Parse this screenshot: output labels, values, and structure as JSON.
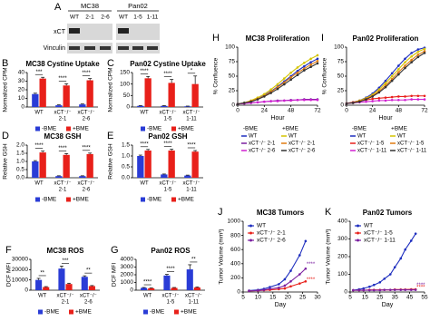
{
  "blot": {
    "label": "A",
    "groups": [
      {
        "name": "MC38",
        "lanes": [
          "WT",
          "2-1",
          "2-6"
        ]
      },
      {
        "name": "Pan02",
        "lanes": [
          "WT",
          "1-5",
          "1-11"
        ]
      }
    ],
    "rows": [
      "xCT",
      "Vinculin"
    ]
  },
  "chart_data": [
    {
      "type": "bar",
      "label": "B",
      "title": "MC38 Cystine Uptake",
      "y_label": "Normalized CPM",
      "categories": [
        [
          "WT"
        ],
        [
          "xCT⁻/⁻",
          "2-1"
        ],
        [
          "xCT⁻/⁻",
          "2-6"
        ]
      ],
      "series": [
        {
          "name": "-BME",
          "color": "#2a3cd6",
          "values": [
            15,
            2,
            3
          ],
          "errors": [
            1,
            0.5,
            0.5
          ]
        },
        {
          "name": "+BME",
          "color": "#e8201a",
          "values": [
            33,
            25,
            31
          ],
          "errors": [
            1.5,
            2,
            2
          ]
        }
      ],
      "ylim": [
        0,
        40
      ],
      "yticks": [
        0,
        10,
        20,
        30,
        40
      ],
      "annotations": [
        "***",
        "****",
        "****"
      ]
    },
    {
      "type": "bar",
      "label": "C",
      "title": "Pan02 Cystine Uptake",
      "y_label": "Normalized CPM",
      "categories": [
        [
          "WT"
        ],
        [
          "xCT⁻/⁻",
          "1-5"
        ],
        [
          "xCT⁻/⁻",
          "1-11"
        ]
      ],
      "series": [
        {
          "name": "-BME",
          "color": "#2a3cd6",
          "values": [
            5,
            5,
            3
          ],
          "errors": [
            1,
            1,
            1
          ]
        },
        {
          "name": "+BME",
          "color": "#e8201a",
          "values": [
            125,
            105,
            100
          ],
          "errors": [
            8,
            15,
            35
          ]
        }
      ],
      "ylim": [
        0,
        150
      ],
      "yticks": [
        0,
        50,
        100,
        150
      ],
      "annotations": [
        "****",
        "****",
        "*"
      ]
    },
    {
      "type": "bar",
      "label": "D",
      "title": "MC38 GSH",
      "y_label": "Relative GSH",
      "categories": [
        [
          "WT"
        ],
        [
          "xCT⁻/⁻",
          "2-1"
        ],
        [
          "xCT⁻/⁻",
          "2-6"
        ]
      ],
      "series": [
        {
          "name": "-BME",
          "color": "#2a3cd6",
          "values": [
            1.0,
            0.1,
            0.1
          ],
          "errors": [
            0.05,
            0.02,
            0.02
          ]
        },
        {
          "name": "+BME",
          "color": "#e8201a",
          "values": [
            1.55,
            1.4,
            1.45
          ],
          "errors": [
            0.08,
            0.08,
            0.06
          ]
        }
      ],
      "ylim": [
        0,
        2.0
      ],
      "yticks": [
        {
          "value": 0,
          "label": "0.0"
        },
        0.5,
        {
          "value": 1,
          "label": "1.0"
        },
        1.5,
        {
          "value": 2,
          "label": "2.0"
        }
      ],
      "annotations": [
        "****",
        "****",
        "****"
      ]
    },
    {
      "type": "bar",
      "label": "E",
      "title": "Pan02 GSH",
      "y_label": "Relative GSH",
      "categories": [
        [
          "WT"
        ],
        [
          "xCT⁻/⁻",
          "1-5"
        ],
        [
          "xCT⁻/⁻",
          "1-11"
        ]
      ],
      "series": [
        {
          "name": "-BME",
          "color": "#2a3cd6",
          "values": [
            1.0,
            0.15,
            0.1
          ],
          "errors": [
            0.04,
            0.02,
            0.02
          ]
        },
        {
          "name": "+BME",
          "color": "#e8201a",
          "values": [
            1.25,
            1.25,
            1.2
          ],
          "errors": [
            0.05,
            0.06,
            0.05
          ]
        }
      ],
      "ylim": [
        0,
        1.5
      ],
      "yticks": [
        {
          "value": 0,
          "label": "0.0"
        },
        0.5,
        {
          "value": 1,
          "label": "1.0"
        },
        1.5
      ],
      "annotations": [
        "****",
        "****",
        "****"
      ]
    },
    {
      "type": "bar",
      "label": "F",
      "title": "MC38 ROS",
      "y_label": "DCF MFI",
      "categories": [
        [
          "WT"
        ],
        [
          "xCT⁻/⁻",
          "2-1"
        ],
        [
          "xCT⁻/⁻",
          "2-6"
        ]
      ],
      "series": [
        {
          "name": "-BME",
          "color": "#2a3cd6",
          "values": [
            10000,
            21000,
            13000
          ],
          "errors": [
            1500,
            2500,
            1000
          ]
        },
        {
          "name": "+BME",
          "color": "#e8201a",
          "values": [
            3000,
            6000,
            4000
          ],
          "errors": [
            500,
            800,
            500
          ]
        }
      ],
      "ylim": [
        0,
        30000
      ],
      "yticks": [
        0,
        10000,
        20000,
        30000
      ],
      "annotations": [
        "**",
        "***",
        "**"
      ]
    },
    {
      "type": "bar",
      "label": "G",
      "title": "Pan02 ROS",
      "y_label": "DCF MFI",
      "categories": [
        [
          "WT"
        ],
        [
          "xCT⁻/⁻",
          "1-5"
        ],
        [
          "xCT⁻/⁻",
          "1-11"
        ]
      ],
      "series": [
        {
          "name": "-BME",
          "color": "#2a3cd6",
          "values": [
            300,
            1900,
            2700
          ],
          "errors": [
            50,
            150,
            600
          ]
        },
        {
          "name": "+BME",
          "color": "#e8201a",
          "values": [
            250,
            300,
            350
          ],
          "errors": [
            40,
            50,
            60
          ]
        }
      ],
      "ylim": [
        0,
        4000
      ],
      "yticks": [
        0,
        1000,
        2000,
        3000,
        4000
      ],
      "annotations": [
        "****",
        "****",
        "**"
      ]
    },
    {
      "type": "line",
      "label": "H",
      "title": "MC38 Proliferation",
      "x_label": "Hour",
      "y_label": "% Confluence",
      "legend": "below",
      "legend_headers": [
        "-BME",
        "+BME"
      ],
      "x": [
        0,
        6,
        12,
        18,
        24,
        30,
        36,
        42,
        48,
        54,
        60,
        66,
        72
      ],
      "xlim": [
        0,
        72
      ],
      "xticks": [
        0,
        24,
        48,
        72
      ],
      "ylim": [
        0,
        100
      ],
      "yticks": [
        0,
        25,
        50,
        75,
        100
      ],
      "series": [
        {
          "name": "WT",
          "color": "#1f2fbf",
          "values": [
            2,
            4,
            7,
            11,
            17,
            24,
            32,
            41,
            50,
            59,
            67,
            74,
            80
          ]
        },
        {
          "name": "WT",
          "color": "#d4c400",
          "values": [
            2,
            4,
            8,
            13,
            19,
            27,
            36,
            46,
            56,
            65,
            73,
            80,
            86
          ]
        },
        {
          "name": "xCT⁻/⁻ 2-1",
          "color": "#7a1fa0",
          "values": [
            2,
            3,
            4,
            5,
            6,
            7,
            8,
            8,
            9,
            9,
            10,
            10,
            10
          ]
        },
        {
          "name": "xCT⁻/⁻ 2-1",
          "color": "#e07a10",
          "values": [
            2,
            4,
            7,
            11,
            16,
            23,
            31,
            39,
            48,
            56,
            63,
            70,
            76
          ]
        },
        {
          "name": "xCT⁻/⁻ 2-6",
          "color": "#d020d0",
          "values": [
            2,
            3,
            4,
            5,
            6,
            7,
            7,
            8,
            8,
            9,
            9,
            9,
            9
          ]
        },
        {
          "name": "xCT⁻/⁻ 2-6",
          "color": "#333333",
          "values": [
            2,
            4,
            6,
            10,
            15,
            21,
            28,
            36,
            44,
            52,
            60,
            66,
            72
          ]
        }
      ]
    },
    {
      "type": "line",
      "label": "I",
      "title": "Pan02 Proliferation",
      "x_label": "Hour",
      "y_label": "% Confluence",
      "legend": "below",
      "legend_headers": [
        "-BME",
        "+BME"
      ],
      "x": [
        0,
        6,
        12,
        18,
        24,
        30,
        36,
        42,
        48,
        54,
        60,
        66,
        72
      ],
      "xlim": [
        0,
        72
      ],
      "xticks": [
        0,
        24,
        48,
        72
      ],
      "ylim": [
        0,
        100
      ],
      "yticks": [
        0,
        25,
        50,
        75,
        100
      ],
      "series": [
        {
          "name": "WT",
          "color": "#1f2fbf",
          "values": [
            3,
            5,
            8,
            13,
            20,
            30,
            42,
            55,
            68,
            80,
            90,
            96,
            99
          ]
        },
        {
          "name": "WT",
          "color": "#d4c400",
          "values": [
            3,
            5,
            8,
            12,
            18,
            27,
            38,
            50,
            62,
            74,
            84,
            92,
            97
          ]
        },
        {
          "name": "xCT⁻/⁻ 1-5",
          "color": "#e8201a",
          "values": [
            3,
            5,
            7,
            9,
            11,
            12,
            13,
            14,
            15,
            15,
            16,
            16,
            16
          ]
        },
        {
          "name": "xCT⁻/⁻ 1-5",
          "color": "#e07a10",
          "values": [
            3,
            4,
            7,
            11,
            16,
            24,
            34,
            45,
            57,
            68,
            78,
            87,
            93
          ]
        },
        {
          "name": "xCT⁻/⁻ 1-11",
          "color": "#d020d0",
          "values": [
            3,
            4,
            5,
            6,
            7,
            8,
            8,
            9,
            9,
            9,
            10,
            10,
            10
          ]
        },
        {
          "name": "xCT⁻/⁻ 1-11",
          "color": "#333333",
          "values": [
            3,
            4,
            6,
            10,
            15,
            22,
            31,
            42,
            53,
            64,
            74,
            83,
            90
          ]
        }
      ]
    },
    {
      "type": "line",
      "label": "J",
      "title": "MC38 Tumors",
      "x_label": "Day",
      "y_label": "Tumor Volume (mm³)",
      "legend": "upper left",
      "x": [
        7,
        10,
        12,
        14,
        17,
        19,
        21,
        24,
        26
      ],
      "xlim": [
        5,
        30
      ],
      "xticks": [
        5,
        10,
        15,
        20,
        25,
        30
      ],
      "ylim": [
        0,
        1000
      ],
      "yticks": [
        0,
        200,
        400,
        600,
        800,
        1000
      ],
      "series": [
        {
          "name": "WT",
          "color": "#1f2fbf",
          "values": [
            20,
            30,
            45,
            70,
            110,
            180,
            300,
            520,
            720
          ]
        },
        {
          "name": "xCT⁻/⁻ 2-1",
          "color": "#e8201a",
          "values": [
            15,
            20,
            25,
            30,
            40,
            50,
            80,
            120,
            150
          ]
        },
        {
          "name": "xCT⁻/⁻ 2-6",
          "color": "#7a1fa0",
          "values": [
            15,
            22,
            30,
            45,
            60,
            90,
            150,
            250,
            330
          ]
        }
      ],
      "annotations": [
        "****",
        "****"
      ]
    },
    {
      "type": "line",
      "label": "K",
      "title": "Pan02 Tumors",
      "x_label": "Day",
      "y_label": "Tumor Volume (mm³)",
      "legend": "upper left",
      "x": [
        7,
        11,
        14,
        18,
        21,
        25,
        28,
        32,
        35,
        39,
        42,
        46,
        49
      ],
      "xlim": [
        5,
        55
      ],
      "xticks": [
        5,
        15,
        25,
        35,
        45,
        55
      ],
      "ylim": [
        0,
        400
      ],
      "yticks": [
        0,
        100,
        200,
        300,
        400
      ],
      "series": [
        {
          "name": "WT",
          "color": "#1f2fbf",
          "values": [
            10,
            15,
            20,
            30,
            40,
            55,
            75,
            100,
            140,
            190,
            240,
            290,
            330
          ]
        },
        {
          "name": "xCT⁻/⁻ 1-5",
          "color": "#e8201a",
          "values": [
            10,
            10,
            10,
            12,
            12,
            12,
            12,
            12,
            14,
            14,
            14,
            15,
            15
          ]
        },
        {
          "name": "xCT⁻/⁻ 1-11",
          "color": "#7a1fa0",
          "values": [
            10,
            10,
            10,
            10,
            10,
            10,
            12,
            12,
            12,
            12,
            12,
            12,
            12
          ]
        }
      ],
      "annotations": [
        "****",
        "****"
      ]
    }
  ]
}
